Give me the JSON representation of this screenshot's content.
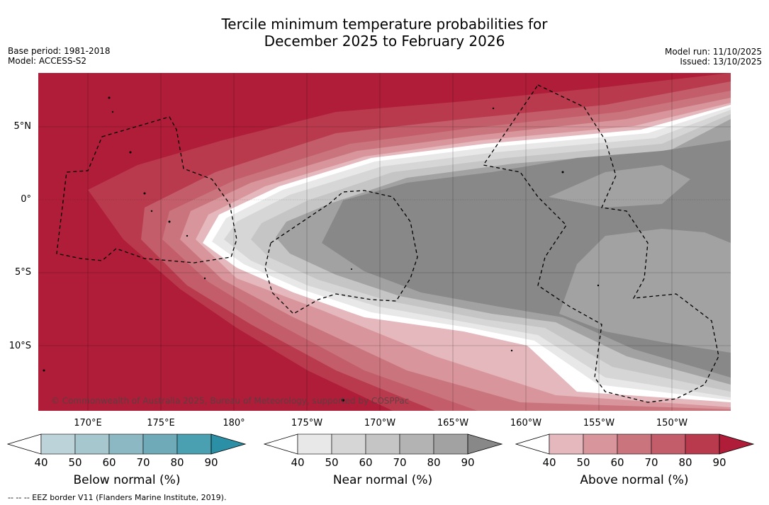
{
  "title_line1": "Tercile minimum temperature probabilities for",
  "title_line2": "December 2025 to February 2026",
  "meta_left": {
    "base_period": "Base period: 1981-2018",
    "model": "Model: ACCESS-S2"
  },
  "meta_right": {
    "model_run": "Model run: 11/10/2025",
    "issued": "Issued: 13/10/2025"
  },
  "lat_labels": [
    "5°N",
    "0°",
    "5°S",
    "10°S"
  ],
  "lon_labels": [
    "170°E",
    "175°E",
    "180°",
    "175°W",
    "170°W",
    "165°W",
    "160°W",
    "155°W",
    "150°W"
  ],
  "copyright": "© Commonwealth of Australia 2025, Bureau of Meteorology, supported by COSPPac",
  "colorbars": {
    "below": {
      "label": "Below normal (%)",
      "ticks": [
        "40",
        "50",
        "60",
        "70",
        "80",
        "90"
      ],
      "colors": [
        "#bdd3da",
        "#a6c7cd",
        "#8bb8c2",
        "#6eaab7",
        "#4aa0b0",
        "#2b8fa5"
      ]
    },
    "near": {
      "label": "Near normal (%)",
      "ticks": [
        "40",
        "50",
        "60",
        "70",
        "80",
        "90"
      ],
      "colors": [
        "#e8e8e8",
        "#d6d6d6",
        "#c5c5c5",
        "#b3b3b3",
        "#a2a2a2",
        "#888888"
      ]
    },
    "above": {
      "label": "Above normal (%)",
      "ticks": [
        "40",
        "50",
        "60",
        "70",
        "80",
        "90"
      ],
      "colors": [
        "#e4b8bc",
        "#d8959b",
        "#ca747d",
        "#c25d69",
        "#b93a4d",
        "#b01d38"
      ]
    }
  },
  "footer": "--  --  -- EEZ border V11 (Flanders Marine Institute, 2019)."
}
